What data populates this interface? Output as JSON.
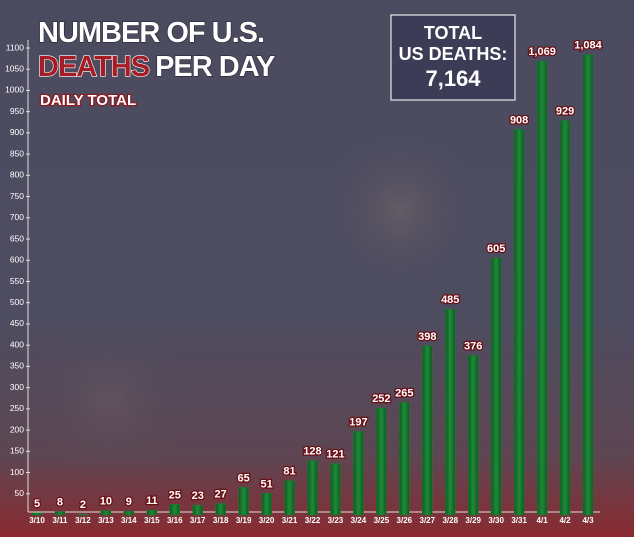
{
  "chart_data": {
    "type": "bar",
    "title": [
      "NUMBER OF U.S.",
      "DEATHS",
      "PER DAY"
    ],
    "subtitle": "DAILY TOTAL",
    "total_label": [
      "TOTAL",
      "US DEATHS:"
    ],
    "total_value": "7,164",
    "categories": [
      "3/10",
      "3/11",
      "3/12",
      "3/13",
      "3/14",
      "3/15",
      "3/16",
      "3/17",
      "3/18",
      "3/19",
      "3/20",
      "3/21",
      "3/22",
      "3/23",
      "3/24",
      "3/25",
      "3/26",
      "3/27",
      "3/28",
      "3/29",
      "3/30",
      "3/31",
      "4/1",
      "4/2",
      "4/3"
    ],
    "values": [
      5,
      8,
      2,
      10,
      9,
      11,
      25,
      23,
      27,
      65,
      51,
      81,
      128,
      121,
      197,
      252,
      265,
      398,
      485,
      376,
      605,
      908,
      1069,
      929,
      1084
    ],
    "value_labels": [
      "5",
      "8",
      "2",
      "10",
      "9",
      "11",
      "25",
      "23",
      "27",
      "65",
      "51",
      "81",
      "128",
      "121",
      "197",
      "252",
      "265",
      "398",
      "485",
      "376",
      "605",
      "908",
      "1,069",
      "929",
      "1,084"
    ],
    "color": "#1b7d33",
    "ylim": [
      0,
      1100
    ],
    "yticks": [
      50,
      100,
      150,
      200,
      250,
      300,
      350,
      400,
      450,
      500,
      550,
      600,
      650,
      700,
      750,
      800,
      850,
      900,
      950,
      1000,
      1050,
      1100
    ],
    "grid": false
  }
}
